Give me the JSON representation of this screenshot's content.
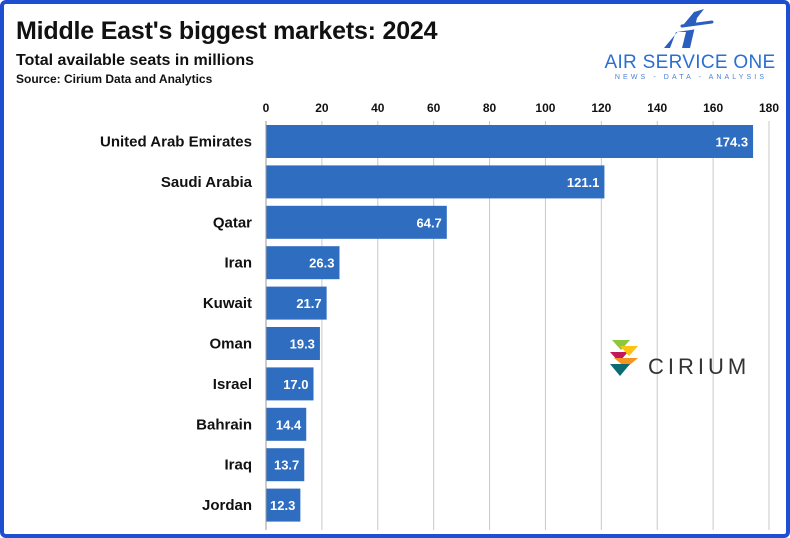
{
  "header": {
    "title": "Middle East's biggest markets: 2024",
    "subtitle": "Total available seats in millions",
    "source": "Source: Cirium Data and Analytics"
  },
  "brand": {
    "name": "AIR SERVICE ONE",
    "tagline": "NEWS - DATA - ANALYSIS",
    "icon": "stylized-a-plane-icon"
  },
  "partner": {
    "name": "CIRIUM",
    "icon": "cirium-logo-icon"
  },
  "colors": {
    "bar": "#2e6dc0",
    "grid": "#c8c8c8",
    "brand": "#2a6fd1",
    "frame": "#1f4fd1"
  },
  "chart_data": {
    "type": "bar",
    "orientation": "horizontal",
    "categories": [
      "United Arab Emirates",
      "Saudi Arabia",
      "Qatar",
      "Iran",
      "Kuwait",
      "Oman",
      "Israel",
      "Bahrain",
      "Iraq",
      "Jordan"
    ],
    "values": [
      174.3,
      121.1,
      64.7,
      26.3,
      21.7,
      19.3,
      17.0,
      14.4,
      13.7,
      12.3
    ],
    "value_labels": [
      "174.3",
      "121.1",
      "64.7",
      "26.3",
      "21.7",
      "19.3",
      "17.0",
      "14.4",
      "13.7",
      "12.3"
    ],
    "title": "Middle East's biggest markets: 2024",
    "xlim": [
      0,
      180
    ],
    "xticks": [
      0,
      20,
      40,
      60,
      80,
      100,
      120,
      140,
      160,
      180
    ],
    "x_axis_position": "top",
    "grid": true,
    "legend": "none"
  }
}
